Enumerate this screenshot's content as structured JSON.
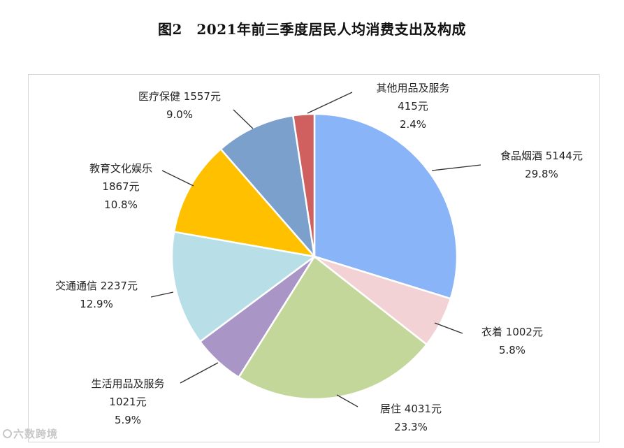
{
  "title": "图2　2021年前三季度居民人均消费支出及构成",
  "watermark": "六数跨境",
  "chart_data": {
    "type": "pie",
    "title": "图2　2021年前三季度居民人均消费支出及构成",
    "start_angle_deg": 0,
    "direction": "clockwise",
    "slices": [
      {
        "name": "食品烟酒",
        "value": 5144,
        "value_label": "5144元",
        "percent": "29.8%",
        "color": "#8AB4F8"
      },
      {
        "name": "衣着",
        "value": 1002,
        "value_label": "1002元",
        "percent": "5.8%",
        "color": "#F2D2D4"
      },
      {
        "name": "居住",
        "value": 4031,
        "value_label": "4031元",
        "percent": "23.3%",
        "color": "#C4D79B"
      },
      {
        "name": "生活用品及服务",
        "value": 1021,
        "value_label": "1021元",
        "percent": "5.9%",
        "color": "#A996C6"
      },
      {
        "name": "交通通信",
        "value": 2237,
        "value_label": "2237元",
        "percent": "12.9%",
        "color": "#B8DFE8"
      },
      {
        "name": "教育文化娱乐",
        "value": 1867,
        "value_label": "1867元",
        "percent": "10.8%",
        "color": "#FFC000"
      },
      {
        "name": "医疗保健",
        "value": 1557,
        "value_label": "1557元",
        "percent": "9.0%",
        "color": "#7BA0CC"
      },
      {
        "name": "其他用品及服务",
        "value": 415,
        "value_label": "415元",
        "percent": "2.4%",
        "color": "#D06060"
      }
    ]
  }
}
